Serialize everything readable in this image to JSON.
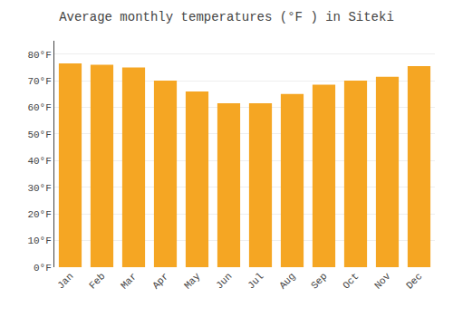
{
  "chart_data": {
    "type": "bar",
    "title": "Average monthly temperatures (°F ) in Siteki",
    "categories": [
      "Jan",
      "Feb",
      "Mar",
      "Apr",
      "May",
      "Jun",
      "Jul",
      "Aug",
      "Sep",
      "Oct",
      "Nov",
      "Dec"
    ],
    "values": [
      76.5,
      76.0,
      75.0,
      70.0,
      66.0,
      61.5,
      61.5,
      65.0,
      68.5,
      70.0,
      71.5,
      75.5
    ],
    "color": "#F5A623",
    "ylim": [
      0,
      85
    ],
    "yticks": [
      {
        "value": 0,
        "label": "0°F"
      },
      {
        "value": 10,
        "label": "10°F"
      },
      {
        "value": 20,
        "label": "20°F"
      },
      {
        "value": 30,
        "label": "30°F"
      },
      {
        "value": 40,
        "label": "40°F"
      },
      {
        "value": 50,
        "label": "50°F"
      },
      {
        "value": 60,
        "label": "60°F"
      },
      {
        "value": 70,
        "label": "70°F"
      },
      {
        "value": 80,
        "label": "80°F"
      }
    ],
    "grid": true
  }
}
